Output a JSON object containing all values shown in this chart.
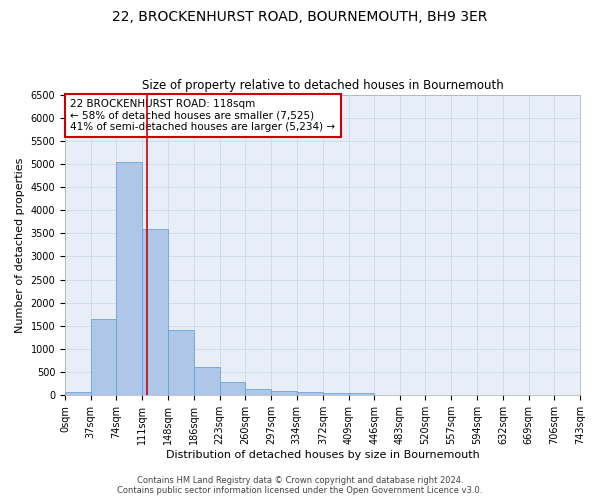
{
  "title": "22, BROCKENHURST ROAD, BOURNEMOUTH, BH9 3ER",
  "subtitle": "Size of property relative to detached houses in Bournemouth",
  "xlabel": "Distribution of detached houses by size in Bournemouth",
  "ylabel": "Number of detached properties",
  "bin_edges": [
    0,
    37,
    74,
    111,
    148,
    186,
    223,
    260,
    297,
    334,
    372,
    409,
    446,
    483,
    520,
    557,
    594,
    632,
    669,
    706,
    743
  ],
  "bar_heights": [
    75,
    1650,
    5050,
    3600,
    1400,
    600,
    290,
    145,
    90,
    60,
    50,
    50,
    0,
    0,
    0,
    0,
    0,
    0,
    0,
    0
  ],
  "bar_color": "#aec6e8",
  "bar_edge_color": "#5b9bd5",
  "property_size": 118,
  "red_line_color": "#cc0000",
  "ylim": [
    0,
    6500
  ],
  "yticks": [
    0,
    500,
    1000,
    1500,
    2000,
    2500,
    3000,
    3500,
    4000,
    4500,
    5000,
    5500,
    6000,
    6500
  ],
  "annotation_title": "22 BROCKENHURST ROAD: 118sqm",
  "annotation_line1": "← 58% of detached houses are smaller (7,525)",
  "annotation_line2": "41% of semi-detached houses are larger (5,234) →",
  "annotation_box_color": "#ffffff",
  "annotation_border_color": "#cc0000",
  "grid_color": "#d0d8e8",
  "background_color": "#e8eef8",
  "footer_line1": "Contains HM Land Registry data © Crown copyright and database right 2024.",
  "footer_line2": "Contains public sector information licensed under the Open Government Licence v3.0.",
  "xtick_labels": [
    "0sqm",
    "37sqm",
    "74sqm",
    "111sqm",
    "148sqm",
    "186sqm",
    "223sqm",
    "260sqm",
    "297sqm",
    "334sqm",
    "372sqm",
    "409sqm",
    "446sqm",
    "483sqm",
    "520sqm",
    "557sqm",
    "594sqm",
    "632sqm",
    "669sqm",
    "706sqm",
    "743sqm"
  ],
  "title_fontsize": 10,
  "subtitle_fontsize": 8.5,
  "axis_label_fontsize": 8,
  "tick_fontsize": 7,
  "annotation_fontsize": 7.5,
  "footer_fontsize": 6
}
